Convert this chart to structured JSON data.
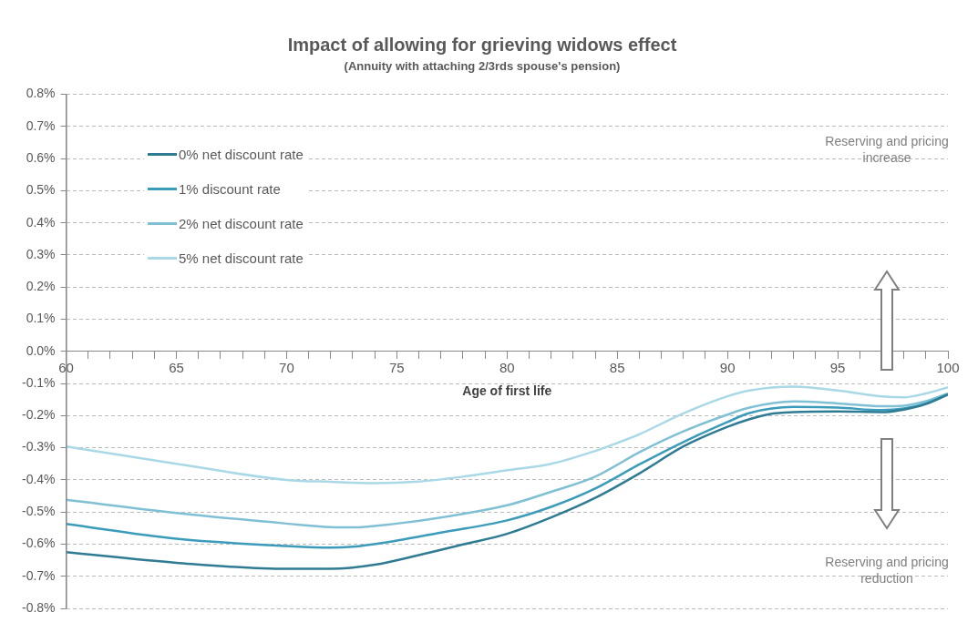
{
  "chart_data": {
    "type": "line",
    "title": "Impact of allowing for grieving widows effect",
    "subtitle": "(Annuity with attaching 2/3rds spouse's pension)",
    "xlabel": "Age of first life",
    "annotations": [
      "Reserving and pricing increase",
      "Reserving and pricing reduction"
    ],
    "series": [
      {
        "name": "0% net discount rate",
        "color": "#2e7b93",
        "x": [
          60,
          65,
          70,
          72,
          74,
          76,
          78,
          80,
          82,
          84,
          86,
          88,
          90,
          91,
          92,
          93,
          95,
          97,
          98,
          99,
          100
        ],
        "values": [
          -0.625,
          -0.658,
          -0.677,
          -0.677,
          -0.664,
          -0.634,
          -0.601,
          -0.568,
          -0.517,
          -0.456,
          -0.38,
          -0.296,
          -0.235,
          -0.211,
          -0.194,
          -0.189,
          -0.187,
          -0.189,
          -0.181,
          -0.164,
          -0.134
        ]
      },
      {
        "name": "1% discount rate",
        "color": "#3b9bbb",
        "x": [
          60,
          65,
          70,
          72,
          73,
          75,
          77,
          80,
          82,
          84,
          86,
          88,
          90,
          91,
          93,
          95,
          97,
          98,
          99,
          100
        ],
        "values": [
          -0.537,
          -0.583,
          -0.606,
          -0.611,
          -0.608,
          -0.589,
          -0.564,
          -0.526,
          -0.484,
          -0.427,
          -0.352,
          -0.282,
          -0.22,
          -0.192,
          -0.173,
          -0.175,
          -0.183,
          -0.178,
          -0.162,
          -0.134
        ]
      },
      {
        "name": "2% net discount rate",
        "color": "#7fc0d4",
        "x": [
          60,
          65,
          70,
          72,
          73,
          75,
          77,
          80,
          82,
          84,
          86,
          88,
          90,
          91,
          93,
          95,
          97,
          98,
          99,
          100
        ],
        "values": [
          -0.462,
          -0.503,
          -0.536,
          -0.547,
          -0.548,
          -0.536,
          -0.517,
          -0.479,
          -0.437,
          -0.39,
          -0.314,
          -0.249,
          -0.197,
          -0.175,
          -0.156,
          -0.162,
          -0.171,
          -0.169,
          -0.155,
          -0.131
        ]
      },
      {
        "name": "5% net discount rate",
        "color": "#a9d8e6",
        "x": [
          60,
          65,
          70,
          72,
          74,
          76,
          78,
          80,
          82,
          84,
          85,
          86,
          88,
          90,
          91,
          93,
          95,
          97,
          98,
          99,
          100
        ],
        "values": [
          -0.296,
          -0.35,
          -0.4,
          -0.406,
          -0.41,
          -0.405,
          -0.39,
          -0.37,
          -0.35,
          -0.31,
          -0.285,
          -0.258,
          -0.193,
          -0.14,
          -0.122,
          -0.11,
          -0.122,
          -0.14,
          -0.143,
          -0.131,
          -0.112
        ]
      }
    ],
    "xlim": [
      60,
      100
    ],
    "xticks": [
      60,
      {
        "value": 61,
        "label": null
      },
      {
        "value": 62,
        "label": null
      },
      {
        "value": 63,
        "label": null
      },
      {
        "value": 64,
        "label": null
      },
      65,
      {
        "value": 66,
        "label": null
      },
      {
        "value": 67,
        "label": null
      },
      {
        "value": 68,
        "label": null
      },
      {
        "value": 69,
        "label": null
      },
      70,
      {
        "value": 71,
        "label": null
      },
      {
        "value": 72,
        "label": null
      },
      {
        "value": 73,
        "label": null
      },
      {
        "value": 74,
        "label": null
      },
      75,
      {
        "value": 76,
        "label": null
      },
      {
        "value": 77,
        "label": null
      },
      {
        "value": 78,
        "label": null
      },
      {
        "value": 79,
        "label": null
      },
      80,
      {
        "value": 81,
        "label": null
      },
      {
        "value": 82,
        "label": null
      },
      {
        "value": 83,
        "label": null
      },
      {
        "value": 84,
        "label": null
      },
      85,
      {
        "value": 86,
        "label": null
      },
      {
        "value": 87,
        "label": null
      },
      {
        "value": 88,
        "label": null
      },
      {
        "value": 89,
        "label": null
      },
      90,
      {
        "value": 91,
        "label": null
      },
      {
        "value": 92,
        "label": null
      },
      {
        "value": 93,
        "label": null
      },
      {
        "value": 94,
        "label": null
      },
      95,
      {
        "value": 96,
        "label": null
      },
      {
        "value": 97,
        "label": null
      },
      {
        "value": 98,
        "label": null
      },
      {
        "value": 99,
        "label": null
      },
      100
    ],
    "ylim": [
      -0.8,
      0.8
    ],
    "yticks": [
      {
        "value": -0.8,
        "label": "-0.8%"
      },
      {
        "value": -0.7,
        "label": "-0.7%"
      },
      {
        "value": -0.6,
        "label": "-0.6%"
      },
      {
        "value": -0.5,
        "label": "-0.5%"
      },
      {
        "value": -0.4,
        "label": "-0.4%"
      },
      {
        "value": -0.3,
        "label": "-0.3%"
      },
      {
        "value": -0.2,
        "label": "-0.2%"
      },
      {
        "value": -0.1,
        "label": "-0.1%"
      },
      {
        "value": 0,
        "label": "0.0%"
      },
      {
        "value": 0.1,
        "label": "0.1%"
      },
      {
        "value": 0.2,
        "label": "0.2%"
      },
      {
        "value": 0.3,
        "label": "0.3%"
      },
      {
        "value": 0.4,
        "label": "0.4%"
      },
      {
        "value": 0.5,
        "label": "0.5%"
      },
      {
        "value": 0.6,
        "label": "0.6%"
      },
      {
        "value": 0.7,
        "label": "0.7%"
      },
      {
        "value": 0.8,
        "label": "0.8%"
      }
    ],
    "grid": "y",
    "legend": "top left",
    "marker": "none",
    "line_style": "solid"
  }
}
